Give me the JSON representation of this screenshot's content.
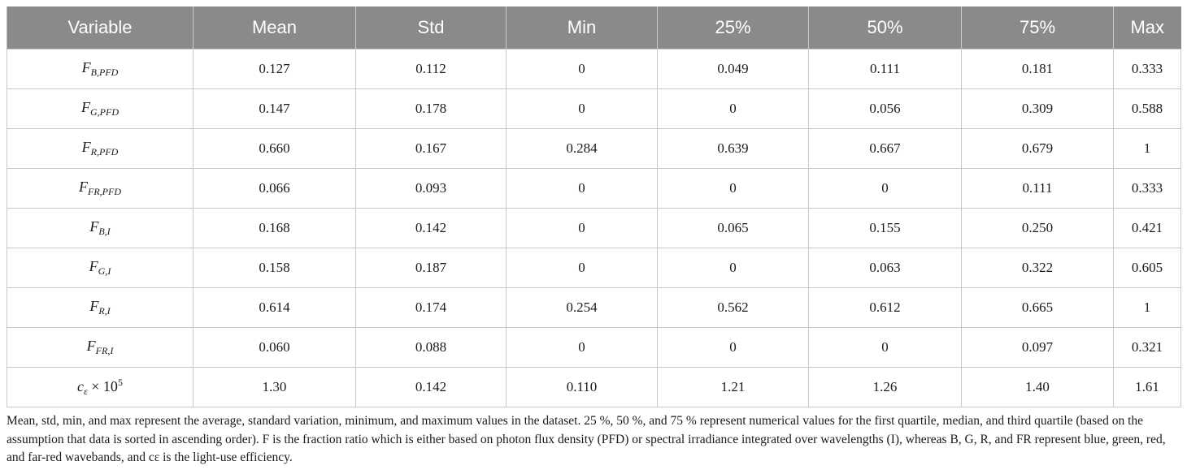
{
  "table": {
    "headers": [
      "Variable",
      "Mean",
      "Std",
      "Min",
      "25%",
      "50%",
      "75%",
      "Max"
    ],
    "rows": [
      {
        "var": {
          "base": "F",
          "sub": "B,PFD"
        },
        "values": [
          "0.127",
          "0.112",
          "0",
          "0.049",
          "0.111",
          "0.181",
          "0.333"
        ]
      },
      {
        "var": {
          "base": "F",
          "sub": "G,PFD"
        },
        "values": [
          "0.147",
          "0.178",
          "0",
          "0",
          "0.056",
          "0.309",
          "0.588"
        ]
      },
      {
        "var": {
          "base": "F",
          "sub": "R,PFD"
        },
        "values": [
          "0.660",
          "0.167",
          "0.284",
          "0.639",
          "0.667",
          "0.679",
          "1"
        ]
      },
      {
        "var": {
          "base": "F",
          "sub": "FR,PFD"
        },
        "values": [
          "0.066",
          "0.093",
          "0",
          "0",
          "0",
          "0.111",
          "0.333"
        ]
      },
      {
        "var": {
          "base": "F",
          "sub": "B,I"
        },
        "values": [
          "0.168",
          "0.142",
          "0",
          "0.065",
          "0.155",
          "0.250",
          "0.421"
        ]
      },
      {
        "var": {
          "base": "F",
          "sub": "G,I"
        },
        "values": [
          "0.158",
          "0.187",
          "0",
          "0",
          "0.063",
          "0.322",
          "0.605"
        ]
      },
      {
        "var": {
          "base": "F",
          "sub": "R,I"
        },
        "values": [
          "0.614",
          "0.174",
          "0.254",
          "0.562",
          "0.612",
          "0.665",
          "1"
        ]
      },
      {
        "var": {
          "base": "F",
          "sub": "FR,I"
        },
        "values": [
          "0.060",
          "0.088",
          "0",
          "0",
          "0",
          "0.097",
          "0.321"
        ]
      },
      {
        "var": {
          "base": "c",
          "sub": "ε",
          "rest": " × 10",
          "sup": "5"
        },
        "values": [
          "1.30",
          "0.142",
          "0.110",
          "1.21",
          "1.26",
          "1.40",
          "1.61"
        ]
      }
    ]
  },
  "caption": "Mean, std, min, and max represent the average, standard variation, minimum, and maximum values in the dataset. 25 %, 50 %, and 75 % represent numerical values for the first quartile, median, and third quartile (based on the assumption that data is sorted in ascending order). F is the fraction ratio which is either based on photon flux density (PFD) or spectral irradiance integrated over wavelengths (I), whereas B, G, R, and FR represent blue, green, red, and far-red wavebands, and cε is the light-use efficiency."
}
